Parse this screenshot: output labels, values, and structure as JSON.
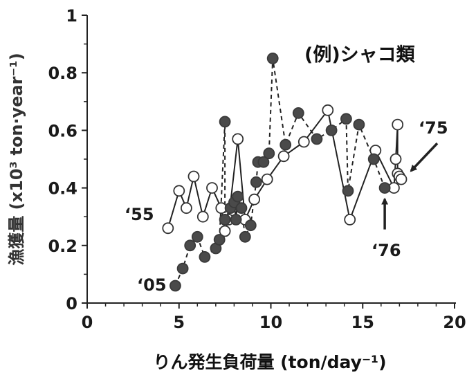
{
  "chart_data": {
    "type": "scatter",
    "title": "(例)シャコ類",
    "xlabel": "りん発生負荷量 (ton/day⁻¹)",
    "ylabel": "漁獲量 (x10³ ton·year⁻¹)",
    "xlim": [
      0,
      20
    ],
    "ylim": [
      0,
      1
    ],
    "xticks": [
      0,
      5,
      10,
      15,
      20
    ],
    "yticks": [
      0,
      0.2,
      0.4,
      0.6,
      0.8,
      1
    ],
    "xtick_labels": [
      "0",
      "5",
      "10",
      "15",
      "20"
    ],
    "ytick_labels": [
      "0",
      "0.2",
      "0.4",
      "0.6",
      "0.8",
      "1"
    ],
    "grid": false,
    "series": [
      {
        "marker": "open-circle",
        "line": "solid",
        "color": "#222222",
        "points": [
          [
            4.4,
            0.26
          ],
          [
            5.0,
            0.39
          ],
          [
            5.4,
            0.33
          ],
          [
            5.8,
            0.44
          ],
          [
            6.3,
            0.3
          ],
          [
            6.8,
            0.4
          ],
          [
            7.3,
            0.33
          ],
          [
            7.5,
            0.25
          ],
          [
            7.7,
            0.29
          ],
          [
            8.2,
            0.57
          ],
          [
            8.6,
            0.29
          ],
          [
            9.1,
            0.36
          ],
          [
            9.8,
            0.43
          ],
          [
            10.7,
            0.51
          ],
          [
            11.8,
            0.56
          ],
          [
            13.1,
            0.67
          ],
          [
            14.3,
            0.29
          ],
          [
            15.7,
            0.53
          ],
          [
            16.7,
            0.4
          ],
          [
            16.8,
            0.5
          ],
          [
            16.9,
            0.62
          ],
          [
            16.9,
            0.45
          ],
          [
            17.0,
            0.44
          ],
          [
            17.1,
            0.43
          ]
        ]
      },
      {
        "marker": "filled-circle",
        "line": "dashed",
        "color": "#4a4a4a",
        "points": [
          [
            4.8,
            0.06
          ],
          [
            5.2,
            0.12
          ],
          [
            5.6,
            0.2
          ],
          [
            6.0,
            0.23
          ],
          [
            6.4,
            0.16
          ],
          [
            7.0,
            0.19
          ],
          [
            7.2,
            0.22
          ],
          [
            7.5,
            0.63
          ],
          [
            7.5,
            0.29
          ],
          [
            7.8,
            0.33
          ],
          [
            8.0,
            0.35
          ],
          [
            8.1,
            0.29
          ],
          [
            8.2,
            0.37
          ],
          [
            8.4,
            0.33
          ],
          [
            8.6,
            0.23
          ],
          [
            8.9,
            0.27
          ],
          [
            9.2,
            0.42
          ],
          [
            9.3,
            0.49
          ],
          [
            9.6,
            0.49
          ],
          [
            9.9,
            0.52
          ],
          [
            10.1,
            0.85
          ],
          [
            10.8,
            0.55
          ],
          [
            11.5,
            0.66
          ],
          [
            12.5,
            0.57
          ],
          [
            13.3,
            0.6
          ],
          [
            14.1,
            0.64
          ],
          [
            14.2,
            0.39
          ],
          [
            14.8,
            0.62
          ],
          [
            15.6,
            0.5
          ],
          [
            16.2,
            0.4
          ]
        ]
      }
    ],
    "annotations": [
      {
        "text": "‘55",
        "target": [
          4.4,
          0.26
        ]
      },
      {
        "text": "‘05",
        "target": [
          4.8,
          0.06
        ]
      },
      {
        "text": "‘76",
        "target": [
          16.2,
          0.4
        ]
      },
      {
        "text": "‘75",
        "target": [
          17.1,
          0.43
        ]
      }
    ]
  }
}
